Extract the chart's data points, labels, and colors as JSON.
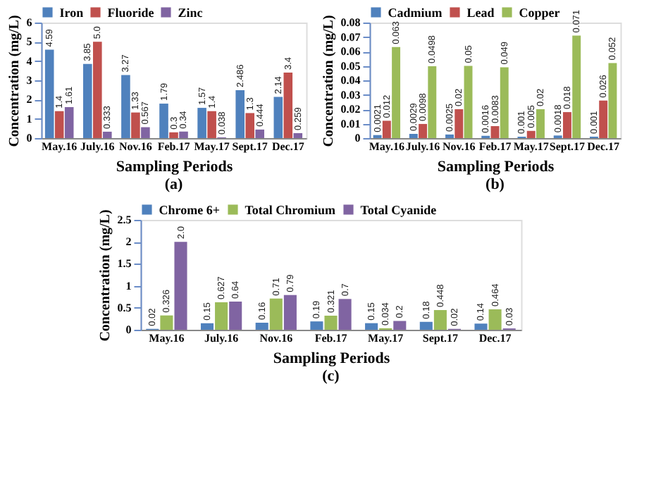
{
  "chart_data": [
    {
      "type": "bar",
      "categories": [
        "May.16",
        "July.16",
        "Nov.16",
        "Feb.17",
        "May.17",
        "Sept.17",
        "Dec.17"
      ],
      "xlabel": "Sampling Periods",
      "ylabel": "Concentration (mg/L)",
      "ylim": [
        0,
        6
      ],
      "yticks": [
        0,
        1,
        2,
        3,
        4,
        5,
        6
      ],
      "legend": "top",
      "grid": false,
      "annotations": [
        "(a)"
      ],
      "series": [
        {
          "name": "Iron",
          "color": "#4f81bd",
          "values": [
            4.59,
            3.85,
            3.27,
            1.79,
            1.57,
            2.486,
            2.14
          ],
          "value_labels": [
            "4.59",
            "3.85",
            "3.27",
            "1.79",
            "1.57",
            "2.486",
            "2.14"
          ]
        },
        {
          "name": "Fluoride",
          "color": "#c0504d",
          "values": [
            1.4,
            5.0,
            1.33,
            0.3,
            1.4,
            1.3,
            3.4
          ],
          "value_labels": [
            "1.4",
            "5.0",
            "1.33",
            "0.3",
            "1.4",
            "1.3",
            "3.4"
          ]
        },
        {
          "name": "Zinc",
          "color": "#8064a2",
          "values": [
            1.61,
            0.333,
            0.567,
            0.34,
            0.038,
            0.444,
            0.259
          ],
          "value_labels": [
            "1.61",
            "0.333",
            "0.567",
            "0.34",
            "0.038",
            "0.444",
            "0.259"
          ]
        }
      ]
    },
    {
      "type": "bar",
      "categories": [
        "May.16",
        "July.16",
        "Nov.16",
        "Feb.17",
        "May.17",
        "Sept.17",
        "Dec.17"
      ],
      "xlabel": "Sampling Periods",
      "ylabel": "Concentration (mg/L)",
      "ylim": [
        0,
        0.08
      ],
      "yticks": [
        0,
        0.01,
        0.02,
        0.03,
        0.04,
        0.05,
        0.06,
        0.07,
        0.08
      ],
      "legend": "top",
      "grid": false,
      "annotations": [
        "(b)"
      ],
      "series": [
        {
          "name": "Cadmium",
          "color": "#4f81bd",
          "values": [
            0.0021,
            0.0029,
            0.0025,
            0.0016,
            0.001,
            0.0018,
            0.001
          ],
          "value_labels": [
            "0.0021",
            "0.0029",
            "0.0025",
            "0.0016",
            "0.001",
            "0.0018",
            "0.001"
          ]
        },
        {
          "name": "Lead",
          "color": "#c0504d",
          "values": [
            0.012,
            0.0098,
            0.02,
            0.0083,
            0.005,
            0.018,
            0.026
          ],
          "value_labels": [
            "0.012",
            "0.0098",
            "0.02",
            "0.0083",
            "0.005",
            "0.018",
            "0.026"
          ]
        },
        {
          "name": "Copper",
          "color": "#9bbb59",
          "values": [
            0.063,
            0.0498,
            0.05,
            0.049,
            0.02,
            0.071,
            0.052
          ],
          "value_labels": [
            "0.063",
            "0.0498",
            "0.05",
            "0.049",
            "0.02",
            "0.071",
            "0.052"
          ]
        }
      ]
    },
    {
      "type": "bar",
      "categories": [
        "May.16",
        "July.16",
        "Nov.16",
        "Feb.17",
        "May.17",
        "Sept.17",
        "Dec.17"
      ],
      "xlabel": "Sampling Periods",
      "ylabel": "Concentration (mg/L)",
      "ylim": [
        0,
        2.5
      ],
      "yticks": [
        0,
        0.5,
        1,
        1.5,
        2,
        2.5
      ],
      "legend": "top",
      "grid": false,
      "annotations": [
        "(c)"
      ],
      "series": [
        {
          "name": "Chrome 6+",
          "color": "#4f81bd",
          "values": [
            0.02,
            0.15,
            0.16,
            0.19,
            0.15,
            0.18,
            0.14
          ],
          "value_labels": [
            "0.02",
            "0.15",
            "0.16",
            "0.19",
            "0.15",
            "0.18",
            "0.14"
          ]
        },
        {
          "name": "Total Chromium",
          "color": "#9bbb59",
          "values": [
            0.326,
            0.627,
            0.71,
            0.321,
            0.034,
            0.448,
            0.464
          ],
          "value_labels": [
            "0.326",
            "0.627",
            "0.71",
            "0.321",
            "0.034",
            "0.448",
            "0.464"
          ]
        },
        {
          "name": "Total Cyanide",
          "color": "#8064a2",
          "values": [
            2.0,
            0.64,
            0.79,
            0.7,
            0.2,
            0.02,
            0.03
          ],
          "value_labels": [
            "2.0",
            "0.64",
            "0.79",
            "0.7",
            "0.2",
            "0.02",
            "0.03"
          ]
        }
      ]
    }
  ]
}
